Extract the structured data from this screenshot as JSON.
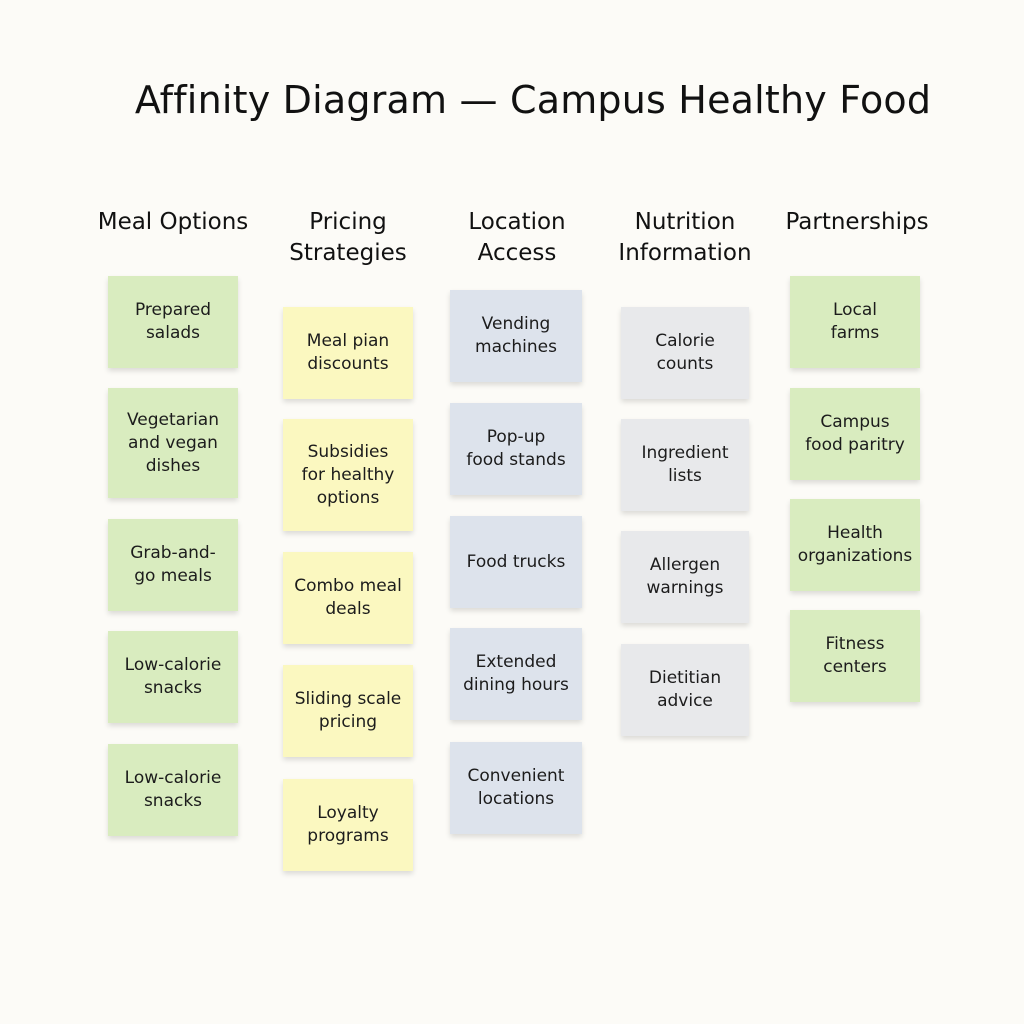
{
  "title": "Affinity Diagram — Campus Healthy Food",
  "colors": {
    "background": "#fcfbf7",
    "green_note": "#d9ecbf",
    "yellow_note": "#fbf8c0",
    "blue_note": "#dde3ec",
    "gray_note": "#e8e9eb"
  },
  "columns": [
    {
      "header": "Meal Options",
      "notes": [
        "Prepared\nsalads",
        "Vegetarian\nand vegan\ndishes",
        "Grab-and-\ngo meals",
        "Low-calorie\nsnacks",
        "Low-calorie\nsnacks"
      ]
    },
    {
      "header": "Pricing\nStrategies",
      "notes": [
        "Meal pian\ndiscounts",
        "Subsidies\nfor healthy\noptions",
        "Combo meal\ndeals",
        "Sliding scale\npricing",
        "Loyalty\nprograms"
      ]
    },
    {
      "header": "Location\nAccess",
      "notes": [
        "Vending\nmachines",
        "Pop-up\nfood stands",
        "Food trucks",
        "Extended\ndining hours",
        "Convenient\nlocations"
      ]
    },
    {
      "header": "Nutrition\nInformation",
      "notes": [
        "Calorie\ncounts",
        "Ingredient\nlists",
        "Allergen\nwarnings",
        "Dietitian\nadvice"
      ]
    },
    {
      "header": "Partnerships",
      "notes": [
        "Local\nfarms",
        "Campus\nfood paritry",
        "Health\norganizations",
        "Fitness\ncenters"
      ]
    }
  ]
}
